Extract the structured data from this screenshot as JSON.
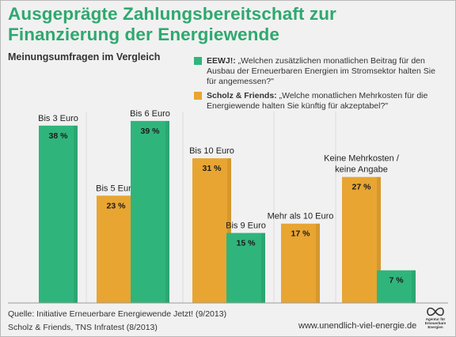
{
  "title_line1": "Ausgeprägte Zahlungsbereitschaft zur",
  "title_line2": "Finanzierung der Energiewende",
  "subtitle": "Meinungsumfragen im Vergleich",
  "colors": {
    "green": "#2fb57c",
    "orange": "#e8a532",
    "title": "#2fa86f"
  },
  "legend": [
    {
      "name": "EEWJ!:",
      "text": " „Welchen zusätzlichen monatlichen Beitrag für den Ausbau der Erneuerbaren Energien im Stromsektor halten Sie für angemessen?\"",
      "color": "#2fb57c"
    },
    {
      "name": "Scholz & Friends:",
      "text": " „Welche monatlichen Mehrkosten für die Energiewende halten Sie künftig für akzeptabel?\"",
      "color": "#e8a532"
    }
  ],
  "chart_data": {
    "type": "bar",
    "title": "Ausgeprägte Zahlungsbereitschaft zur Finanzierung der Energiewende",
    "subtitle": "Meinungsumfragen im Vergleich",
    "unit": "%",
    "ylim": [
      0,
      40
    ],
    "grid": false,
    "legend_position": "top-right",
    "series": [
      {
        "name": "EEWJ!",
        "color": "#2fb57c"
      },
      {
        "name": "Scholz & Friends",
        "color": "#e8a532"
      }
    ],
    "bars": [
      {
        "label": "Bis 3 Euro",
        "value": 38,
        "value_label": "38 %",
        "series": "EEWJ!"
      },
      {
        "label": "Bis 5 Euro",
        "value": 23,
        "value_label": "23 %",
        "series": "Scholz & Friends"
      },
      {
        "label": "Bis 6 Euro",
        "value": 39,
        "value_label": "39 %",
        "series": "EEWJ!"
      },
      {
        "label": "Bis 10 Euro",
        "value": 31,
        "value_label": "31 %",
        "series": "Scholz & Friends"
      },
      {
        "label": "Bis 9 Euro",
        "value": 15,
        "value_label": "15 %",
        "series": "EEWJ!"
      },
      {
        "label": "Mehr als 10 Euro",
        "value": 17,
        "value_label": "17 %",
        "series": "Scholz & Friends"
      },
      {
        "label": "Keine Mehrkosten / keine Angabe",
        "label_lines": [
          "Keine Mehrkosten /",
          "keine Angabe"
        ],
        "value": 27,
        "value_label": "27 %",
        "series": "Scholz & Friends"
      },
      {
        "label": "",
        "value": 7,
        "value_label": "7 %",
        "series": "EEWJ!"
      }
    ]
  },
  "footer": {
    "source_line1": "Quelle: Initiative Erneuerbare Energiewende Jetzt! (9/2013)",
    "source_line2": "Scholz & Friends, TNS Infratest (8/2013)",
    "url": "www.unendlich-viel-energie.de"
  },
  "logo": {
    "icon": "infinity-icon",
    "text_lines": [
      "Agentur für",
      "Erneuerbare",
      "Energien"
    ]
  }
}
